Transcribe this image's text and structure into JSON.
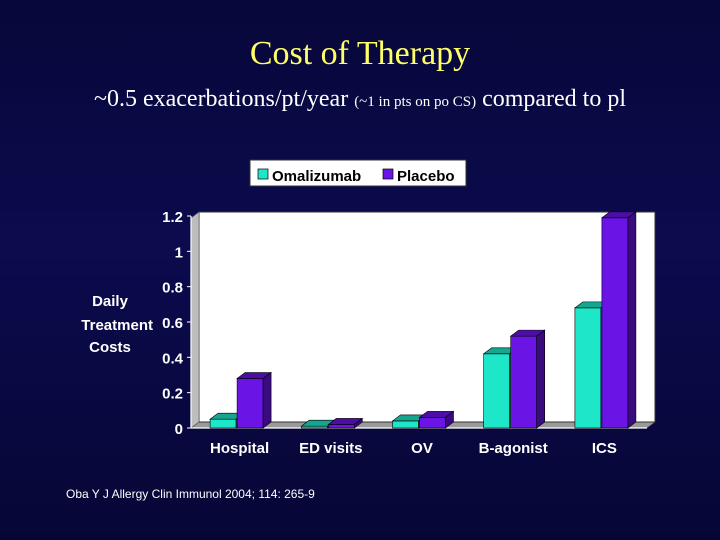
{
  "slide": {
    "title": "Cost of Therapy",
    "subtitle_part1": "~0.5 exacerbations/pt/year ",
    "subtitle_part2": "(~1 in pts on po CS)",
    "subtitle_part3": " compared to pl",
    "citation": "Oba Y J Allergy Clin Immunol 2004; 114: 265-9"
  },
  "colors": {
    "series1": "#1ee6c8",
    "series2": "#6a14e6",
    "background": "#0b0b4e",
    "title": "#ffff66"
  },
  "chart_data": {
    "type": "bar",
    "categories": [
      "Hospital",
      "ED visits",
      "OV",
      "B-agonist",
      "ICS"
    ],
    "series": [
      {
        "name": "Omalizumab",
        "values": [
          0.05,
          0.01,
          0.04,
          0.42,
          0.68
        ]
      },
      {
        "name": "Placebo",
        "values": [
          0.28,
          0.02,
          0.06,
          0.52,
          1.19
        ]
      }
    ],
    "ylabel_lines": [
      "Daily",
      "Treatment",
      "Costs"
    ],
    "yticks": [
      "0",
      "0.2",
      "0.4",
      "0.6",
      "0.8",
      "1",
      "1.2"
    ],
    "ylim": [
      0,
      1.2
    ],
    "grid": false,
    "legend_position": "top"
  }
}
